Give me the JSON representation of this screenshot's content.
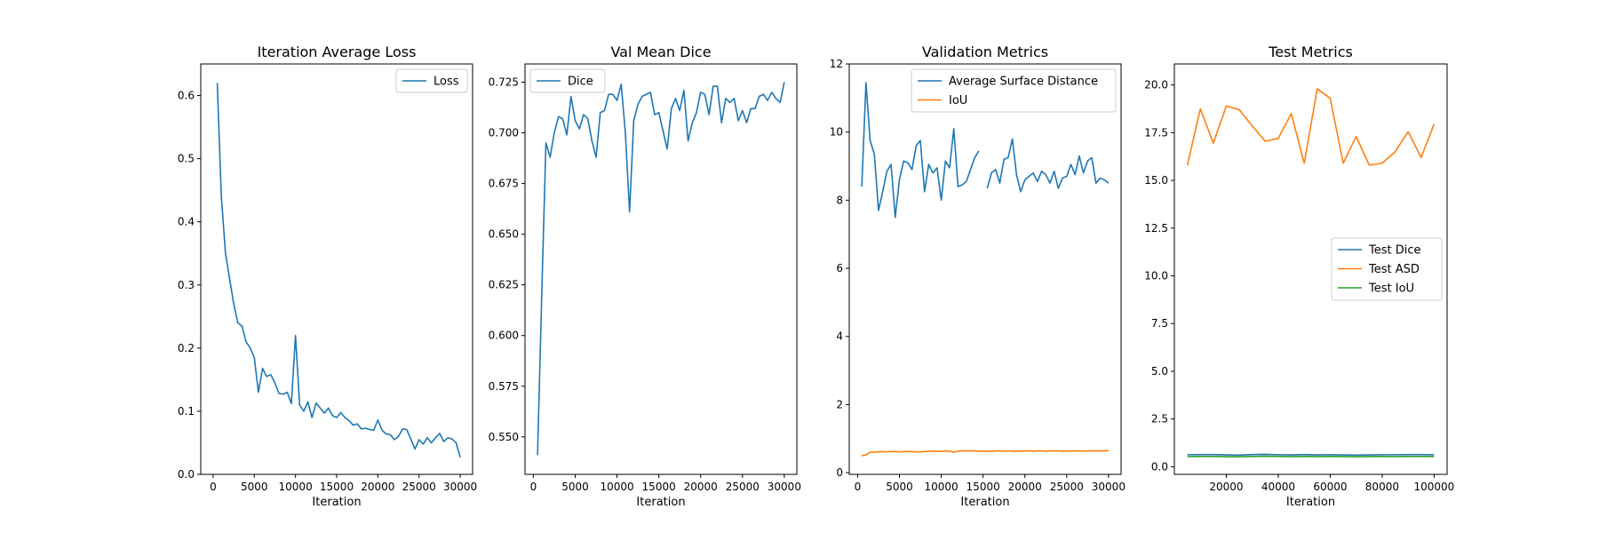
{
  "chart_data": [
    {
      "type": "line",
      "title": "Iteration Average Loss",
      "xlabel": "Iteration",
      "ylabel": "",
      "xlim": [
        -1500,
        31500
      ],
      "ylim": [
        0.0,
        0.65
      ],
      "xticks": [
        0,
        5000,
        10000,
        15000,
        20000,
        25000,
        30000
      ],
      "xtick_labels": [
        "0",
        "5000",
        "10000",
        "15000",
        "20000",
        "25000",
        "30000"
      ],
      "yticks": [
        0.0,
        0.1,
        0.2,
        0.3,
        0.4,
        0.5,
        0.6
      ],
      "ytick_labels": [
        "0.0",
        "0.1",
        "0.2",
        "0.3",
        "0.4",
        "0.5",
        "0.6"
      ],
      "legend_position": "upper right",
      "grid": false,
      "series": [
        {
          "name": "Loss",
          "color": "#1f77b4",
          "x": [
            500,
            1000,
            1500,
            2000,
            2500,
            3000,
            3500,
            4000,
            4500,
            5000,
            5500,
            6000,
            6500,
            7000,
            7500,
            8000,
            8500,
            9000,
            9500,
            10000,
            10500,
            11000,
            11500,
            12000,
            12500,
            13000,
            13500,
            14000,
            14500,
            15000,
            15500,
            16000,
            16500,
            17000,
            17500,
            18000,
            18500,
            19000,
            19500,
            20000,
            20500,
            21000,
            21500,
            22000,
            22500,
            23000,
            23500,
            24000,
            24500,
            25000,
            25500,
            26000,
            26500,
            27000,
            27500,
            28000,
            28500,
            29000,
            29500,
            30000
          ],
          "y": [
            0.62,
            0.44,
            0.35,
            0.31,
            0.27,
            0.24,
            0.235,
            0.21,
            0.2,
            0.185,
            0.13,
            0.168,
            0.155,
            0.158,
            0.145,
            0.128,
            0.127,
            0.13,
            0.112,
            0.22,
            0.11,
            0.1,
            0.115,
            0.09,
            0.113,
            0.105,
            0.097,
            0.105,
            0.093,
            0.09,
            0.098,
            0.09,
            0.085,
            0.078,
            0.08,
            0.072,
            0.073,
            0.071,
            0.07,
            0.086,
            0.07,
            0.064,
            0.063,
            0.055,
            0.06,
            0.072,
            0.071,
            0.056,
            0.04,
            0.055,
            0.048,
            0.058,
            0.05,
            0.058,
            0.065,
            0.052,
            0.058,
            0.056,
            0.05,
            0.027
          ]
        }
      ]
    },
    {
      "type": "line",
      "title": "Val Mean Dice",
      "xlabel": "Iteration",
      "ylabel": "",
      "xlim": [
        -1000,
        31500
      ],
      "ylim": [
        0.5315,
        0.734
      ],
      "xticks": [
        0,
        5000,
        10000,
        15000,
        20000,
        25000,
        30000
      ],
      "xtick_labels": [
        "0",
        "5000",
        "10000",
        "15000",
        "20000",
        "25000",
        "30000"
      ],
      "yticks": [
        0.55,
        0.575,
        0.6,
        0.625,
        0.65,
        0.675,
        0.7,
        0.725
      ],
      "ytick_labels": [
        "0.550",
        "0.575",
        "0.600",
        "0.625",
        "0.650",
        "0.675",
        "0.700",
        "0.725"
      ],
      "legend_position": "upper left",
      "grid": false,
      "series": [
        {
          "name": "Dice",
          "color": "#1f77b4",
          "x": [
            500,
            1000,
            1500,
            2000,
            2500,
            3000,
            3500,
            4000,
            4500,
            5000,
            5500,
            6000,
            6500,
            7000,
            7500,
            8000,
            8500,
            9000,
            9500,
            10000,
            10500,
            11000,
            11500,
            12000,
            12500,
            13000,
            13500,
            14000,
            14500,
            15000,
            15500,
            16000,
            16500,
            17000,
            17500,
            18000,
            18500,
            19000,
            19500,
            20000,
            20500,
            21000,
            21500,
            22000,
            22500,
            23000,
            23500,
            24000,
            24500,
            25000,
            25500,
            26000,
            26500,
            27000,
            27500,
            28000,
            28500,
            29000,
            29500,
            30000
          ],
          "y": [
            0.541,
            0.62,
            0.695,
            0.688,
            0.7,
            0.708,
            0.707,
            0.699,
            0.718,
            0.706,
            0.702,
            0.709,
            0.707,
            0.696,
            0.688,
            0.71,
            0.711,
            0.719,
            0.719,
            0.716,
            0.724,
            0.7,
            0.661,
            0.706,
            0.714,
            0.718,
            0.719,
            0.72,
            0.709,
            0.71,
            0.701,
            0.692,
            0.712,
            0.717,
            0.711,
            0.721,
            0.696,
            0.705,
            0.71,
            0.72,
            0.719,
            0.709,
            0.723,
            0.723,
            0.705,
            0.717,
            0.715,
            0.717,
            0.706,
            0.711,
            0.705,
            0.712,
            0.712,
            0.718,
            0.719,
            0.716,
            0.72,
            0.717,
            0.715,
            0.725
          ]
        }
      ]
    },
    {
      "type": "line",
      "title": "Validation Metrics",
      "xlabel": "Iteration",
      "ylabel": "",
      "xlim": [
        -1000,
        31500
      ],
      "ylim": [
        -0.05,
        12.0
      ],
      "xticks": [
        0,
        5000,
        10000,
        15000,
        20000,
        25000,
        30000
      ],
      "xtick_labels": [
        "0",
        "5000",
        "10000",
        "15000",
        "20000",
        "25000",
        "30000"
      ],
      "yticks": [
        0,
        2,
        4,
        6,
        8,
        10,
        12
      ],
      "ytick_labels": [
        "0",
        "2",
        "4",
        "6",
        "8",
        "10",
        "12"
      ],
      "legend_position": "upper right",
      "grid": false,
      "series": [
        {
          "name": "Average Surface Distance",
          "color": "#1f77b4",
          "x": [
            500,
            1000,
            1500,
            2000,
            2500,
            3000,
            3500,
            4000,
            4500,
            5000,
            5500,
            6000,
            6500,
            7000,
            7500,
            8000,
            8500,
            9000,
            9500,
            10000,
            10500,
            11000,
            11500,
            12000,
            12500,
            13000,
            13500,
            14000,
            14500,
            15000,
            15500,
            16000,
            16500,
            17000,
            17500,
            18000,
            18500,
            19000,
            19500,
            20000,
            20500,
            21000,
            21500,
            22000,
            22500,
            23000,
            23500,
            24000,
            24500,
            25000,
            25500,
            26000,
            26500,
            27000,
            27500,
            28000,
            28500,
            29000,
            29500,
            30000
          ],
          "y": [
            8.4,
            11.45,
            9.75,
            9.35,
            7.7,
            8.25,
            8.85,
            9.05,
            7.5,
            8.6,
            9.15,
            9.1,
            8.9,
            9.6,
            9.75,
            8.25,
            9.05,
            8.8,
            8.95,
            8.0,
            9.15,
            8.95,
            10.1,
            8.4,
            8.45,
            8.55,
            8.9,
            9.25,
            9.45,
            null,
            8.35,
            8.8,
            8.9,
            8.5,
            9.2,
            9.25,
            9.8,
            8.75,
            8.25,
            8.6,
            8.7,
            8.8,
            8.55,
            8.85,
            8.75,
            8.5,
            8.85,
            8.35,
            8.65,
            8.7,
            9.05,
            8.75,
            9.3,
            8.8,
            9.15,
            9.25,
            8.5,
            8.65,
            8.6,
            8.5
          ]
        },
        {
          "name": "IoU",
          "color": "#ff7f0e",
          "x": [
            500,
            1000,
            1500,
            2000,
            2500,
            3000,
            3500,
            4000,
            4500,
            5000,
            5500,
            6000,
            6500,
            7000,
            7500,
            8000,
            8500,
            9000,
            9500,
            10000,
            10500,
            11000,
            11500,
            12000,
            12500,
            13000,
            13500,
            14000,
            14500,
            15000,
            15500,
            16000,
            16500,
            17000,
            17500,
            18000,
            18500,
            19000,
            19500,
            20000,
            20500,
            21000,
            21500,
            22000,
            22500,
            23000,
            23500,
            24000,
            24500,
            25000,
            25500,
            26000,
            26500,
            27000,
            27500,
            28000,
            28500,
            29000,
            29500,
            30000
          ],
          "y": [
            0.5,
            0.52,
            0.6,
            0.6,
            0.61,
            0.62,
            0.61,
            0.62,
            0.62,
            0.61,
            0.62,
            0.62,
            0.62,
            0.61,
            0.61,
            0.62,
            0.63,
            0.63,
            0.63,
            0.62,
            0.64,
            0.63,
            0.6,
            0.63,
            0.64,
            0.64,
            0.64,
            0.64,
            0.63,
            0.63,
            0.63,
            0.63,
            0.64,
            0.64,
            0.63,
            0.64,
            0.63,
            0.63,
            0.63,
            0.64,
            0.64,
            0.63,
            0.64,
            0.64,
            0.63,
            0.64,
            0.64,
            0.64,
            0.63,
            0.64,
            0.63,
            0.64,
            0.64,
            0.63,
            0.64,
            0.64,
            0.64,
            0.64,
            0.64,
            0.65
          ]
        }
      ]
    },
    {
      "type": "line",
      "title": "Test Metrics",
      "xlabel": "Iteration",
      "ylabel": "",
      "xlim": [
        0,
        105000
      ],
      "ylim": [
        -0.4,
        21.1
      ],
      "xticks": [
        20000,
        40000,
        60000,
        80000,
        100000
      ],
      "xtick_labels": [
        "20000",
        "40000",
        "60000",
        "80000",
        "100000"
      ],
      "yticks": [
        0.0,
        2.5,
        5.0,
        7.5,
        10.0,
        12.5,
        15.0,
        17.5,
        20.0
      ],
      "ytick_labels": [
        "0.0",
        "2.5",
        "5.0",
        "7.5",
        "10.0",
        "12.5",
        "15.0",
        "17.5",
        "20.0"
      ],
      "legend_position": "center right",
      "grid": false,
      "series": [
        {
          "name": "Test Dice",
          "color": "#1f77b4",
          "x": [
            5000,
            10000,
            15000,
            20000,
            25000,
            30000,
            35000,
            40000,
            45000,
            50000,
            55000,
            60000,
            65000,
            70000,
            75000,
            80000,
            85000,
            90000,
            95000,
            100000
          ],
          "y": [
            0.63,
            0.64,
            0.64,
            0.62,
            0.61,
            0.64,
            0.65,
            0.63,
            0.62,
            0.64,
            0.62,
            0.63,
            0.62,
            0.61,
            0.62,
            0.63,
            0.63,
            0.64,
            0.64,
            0.63
          ]
        },
        {
          "name": "Test ASD",
          "color": "#ff7f0e",
          "x": [
            5000,
            10000,
            15000,
            20000,
            25000,
            30000,
            35000,
            40000,
            45000,
            50000,
            55000,
            60000,
            65000,
            70000,
            75000,
            80000,
            85000,
            90000,
            95000,
            100000
          ],
          "y": [
            15.8,
            18.75,
            16.95,
            18.9,
            18.7,
            17.85,
            17.05,
            17.2,
            18.5,
            15.9,
            19.8,
            19.3,
            15.9,
            17.3,
            15.8,
            15.9,
            16.5,
            17.55,
            16.2,
            17.95
          ]
        },
        {
          "name": "Test IoU",
          "color": "#2ca02c",
          "x": [
            5000,
            10000,
            15000,
            20000,
            25000,
            30000,
            35000,
            40000,
            45000,
            50000,
            55000,
            60000,
            65000,
            70000,
            75000,
            80000,
            85000,
            90000,
            95000,
            100000
          ],
          "y": [
            0.53,
            0.54,
            0.54,
            0.52,
            0.52,
            0.54,
            0.55,
            0.54,
            0.53,
            0.54,
            0.53,
            0.54,
            0.53,
            0.52,
            0.53,
            0.54,
            0.53,
            0.54,
            0.54,
            0.54
          ]
        }
      ]
    }
  ]
}
